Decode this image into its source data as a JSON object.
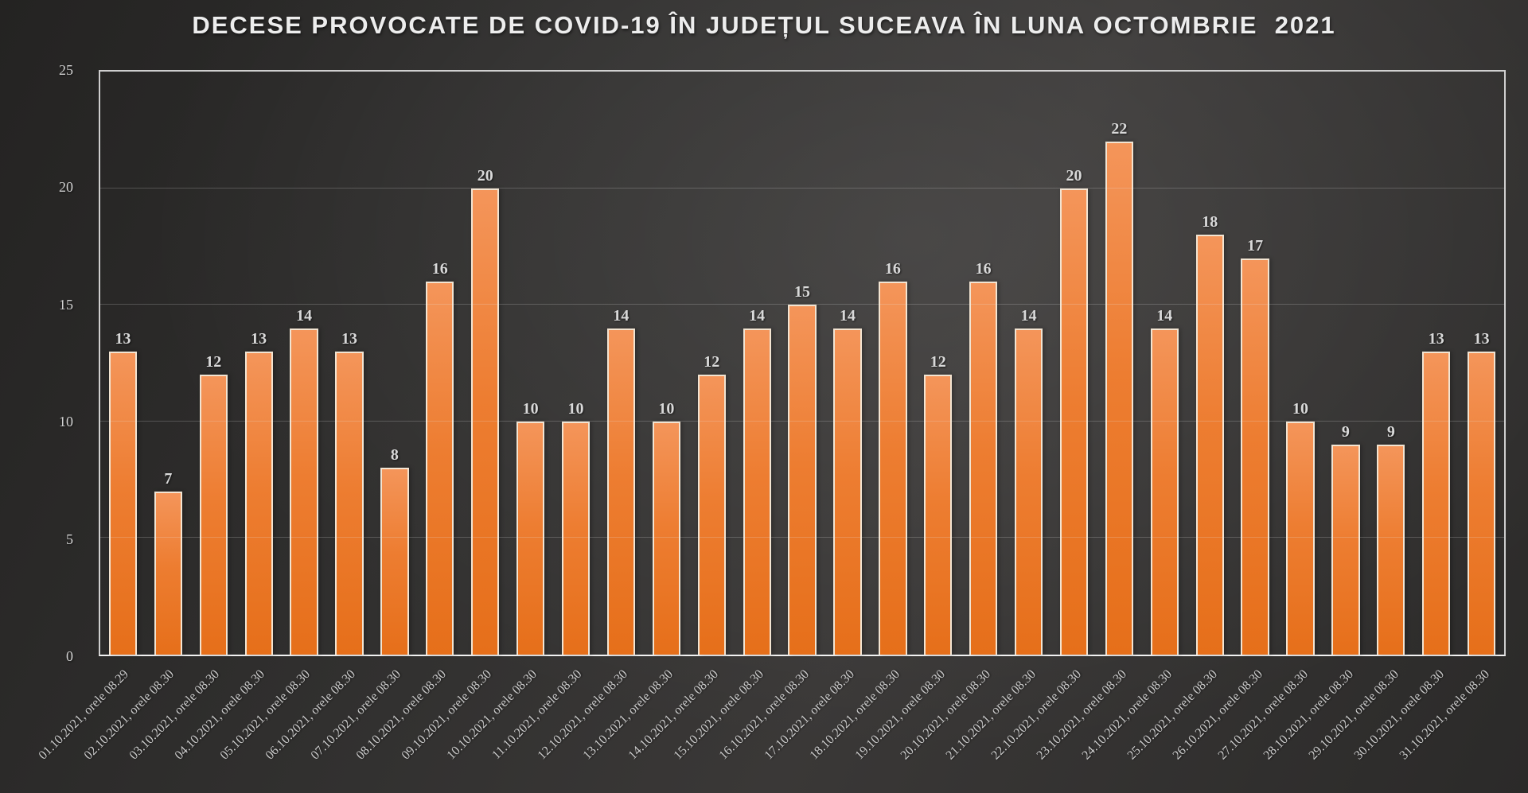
{
  "chart_data": {
    "type": "bar",
    "title": "DECESE PROVOCATE DE COVID-19 ÎN JUDEȚUL SUCEAVA ÎN LUNA OCTOMBRIE  2021",
    "categories": [
      "01.10.2021, orele 08.29",
      "02.10.2021, orele 08.30",
      "03.10.2021, orele 08.30",
      "04.10.2021, orele 08.30",
      "05.10.2021, orele 08.30",
      "06.10.2021, orele 08.30",
      "07.10.2021, orele 08.30",
      "08.10.2021, orele 08.30",
      "09.10.2021, orele 08.30",
      "10.10.2021, orele 08.30",
      "11.10.2021, orele 08.30",
      "12.10.2021, orele 08.30",
      "13.10.2021, orele 08.30",
      "14.10.2021, orele 08.30",
      "15.10.2021, orele 08.30",
      "16.10.2021, orele 08.30",
      "17.10.2021, orele 08.30",
      "18.10.2021, orele 08.30",
      "19.10.2021, orele 08.30",
      "20.10.2021, orele 08.30",
      "21.10.2021, orele 08.30",
      "22.10.2021, orele 08.30",
      "23.10.2021, orele 08.30",
      "24.10.2021, orele 08.30",
      "25.10.2021, orele 08.30",
      "26.10.2021, orele 08.30",
      "27.10.2021, orele 08.30",
      "28.10.2021, orele 08.30",
      "29.10.2021, orele 08.30",
      "30.10.2021, orele 08.30",
      "31.10.2021, orele 08.30"
    ],
    "values": [
      13,
      7,
      12,
      13,
      14,
      13,
      8,
      16,
      20,
      10,
      10,
      14,
      10,
      12,
      14,
      15,
      14,
      16,
      12,
      16,
      14,
      20,
      22,
      14,
      18,
      17,
      10,
      9,
      9,
      13,
      13
    ],
    "xlabel": "",
    "ylabel": "",
    "ylim": [
      0,
      25
    ],
    "yticks": [
      0,
      5,
      10,
      15,
      20,
      25
    ],
    "grid": "horizontal-major",
    "legend": "none",
    "data_labels": true,
    "colors": {
      "bar_fill": "#ED7D31",
      "bar_fill_light": "#F4955A",
      "bar_fill_dark": "#E66F1A",
      "bar_border": "#F2E4D2",
      "data_label": "#D9D9D9",
      "axis_label": "#D2D2D2",
      "plot_border": "#ECECEC",
      "title": "#EDEDED",
      "background_center": "#3A3837",
      "background_edge": "#242322"
    }
  }
}
